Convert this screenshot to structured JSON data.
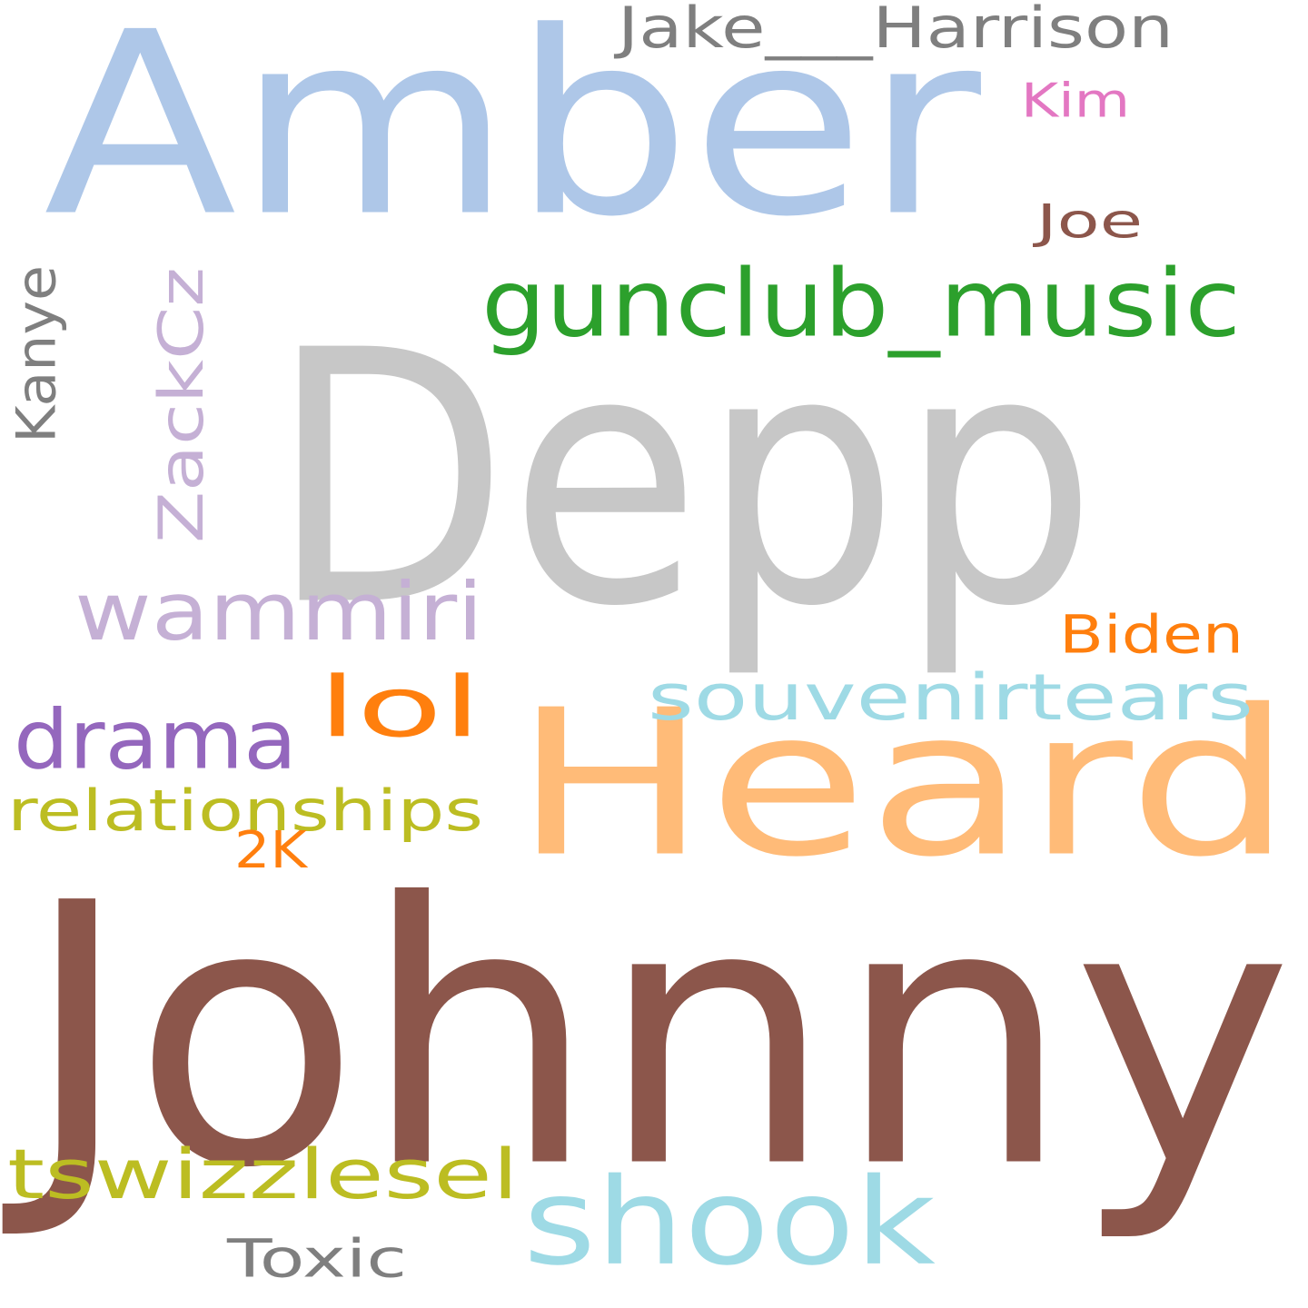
{
  "words": [
    {
      "id": "amber",
      "text": "Amber",
      "color": "#aec7e8"
    },
    {
      "id": "depp",
      "text": "Depp",
      "color": "#c7c7c7"
    },
    {
      "id": "heard",
      "text": "Heard",
      "color": "#ffbb78"
    },
    {
      "id": "johnny",
      "text": "Johnny",
      "color": "#8c564b"
    },
    {
      "id": "gunclub-music",
      "text": "gunclub_music",
      "color": "#2ca02c"
    },
    {
      "id": "jake-harrison",
      "text": "Jake___Harrison",
      "color": "#7f7f7f"
    },
    {
      "id": "kim",
      "text": "Kim",
      "color": "#e377c2"
    },
    {
      "id": "joe",
      "text": "Joe",
      "color": "#8c564b"
    },
    {
      "id": "kanye",
      "text": "Kanye",
      "color": "#7f7f7f"
    },
    {
      "id": "zackcz",
      "text": "ZackCz",
      "color": "#c5b0d5"
    },
    {
      "id": "wammiri",
      "text": "wammiri",
      "color": "#c5b0d5"
    },
    {
      "id": "biden",
      "text": "Biden",
      "color": "#ff7f0e"
    },
    {
      "id": "lol",
      "text": "lol",
      "color": "#ff7f0e"
    },
    {
      "id": "souvenirtears",
      "text": "souvenirtears",
      "color": "#9edae5"
    },
    {
      "id": "drama",
      "text": "drama",
      "color": "#9467bd"
    },
    {
      "id": "relationships",
      "text": "relationships",
      "color": "#bcbd22"
    },
    {
      "id": "2k",
      "text": "2K",
      "color": "#ff7f0e"
    },
    {
      "id": "tswizzlesel",
      "text": "tswizzlesel",
      "color": "#bcbd22"
    },
    {
      "id": "shook",
      "text": "shook",
      "color": "#9edae5"
    },
    {
      "id": "toxic",
      "text": "Toxic",
      "color": "#7f7f7f"
    }
  ]
}
